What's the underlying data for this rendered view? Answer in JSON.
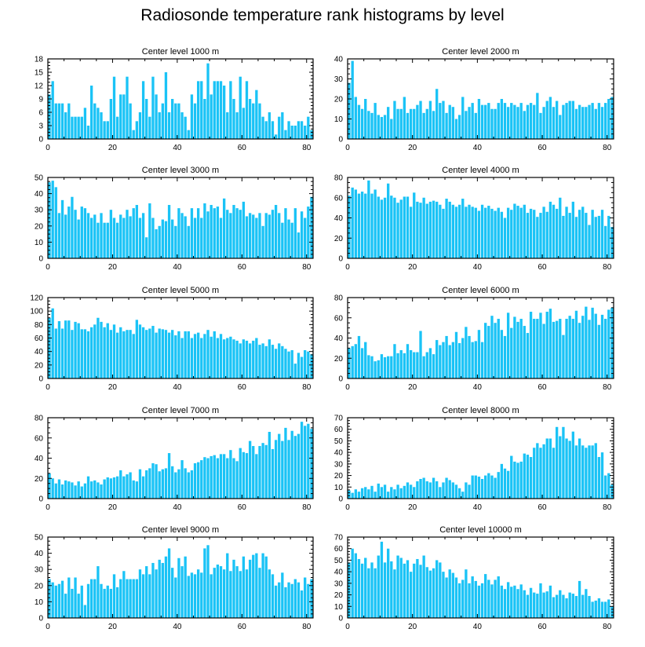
{
  "title": "Radiosonde temperature rank histograms by level",
  "bar_color": "#1ac3f6",
  "chart_data": [
    {
      "type": "bar",
      "title": "Center level 1000 m",
      "xlim": [
        0,
        82
      ],
      "ylim": [
        0,
        18
      ],
      "x_ticks": [
        0,
        20,
        40,
        60,
        80
      ],
      "y_ticks": [
        0,
        3,
        6,
        9,
        12,
        15,
        18
      ],
      "values": [
        10,
        13,
        8,
        8,
        8,
        6,
        8,
        5,
        5,
        5,
        5,
        7,
        3,
        12,
        8,
        7,
        6,
        4,
        4,
        9,
        14,
        5,
        10,
        10,
        14,
        8,
        2,
        4,
        6,
        13,
        9,
        5,
        14,
        10,
        6,
        8,
        15,
        6,
        9,
        8,
        8,
        6,
        5,
        2,
        10,
        8,
        13,
        13,
        9,
        17,
        10,
        13,
        13,
        13,
        12,
        6,
        13,
        9,
        6,
        14,
        7,
        13,
        9,
        8,
        11,
        8,
        5,
        4,
        6,
        4,
        1,
        5,
        6,
        2,
        4,
        3,
        3,
        4,
        4,
        3,
        5,
        2
      ]
    },
    {
      "type": "bar",
      "title": "Center level 2000 m",
      "xlim": [
        0,
        82
      ],
      "ylim": [
        0,
        40
      ],
      "x_ticks": [
        0,
        20,
        40,
        60,
        80
      ],
      "y_ticks": [
        0,
        10,
        20,
        30,
        40
      ],
      "values": [
        28,
        39,
        21,
        17,
        15,
        20,
        14,
        13,
        18,
        12,
        11,
        12,
        16,
        10,
        19,
        15,
        15,
        21,
        13,
        15,
        15,
        17,
        19,
        13,
        15,
        19,
        14,
        25,
        18,
        19,
        13,
        17,
        16,
        10,
        12,
        21,
        14,
        16,
        18,
        13,
        20,
        17,
        17,
        18,
        15,
        15,
        18,
        20,
        18,
        16,
        18,
        17,
        16,
        18,
        14,
        17,
        18,
        17,
        23,
        13,
        16,
        19,
        21,
        16,
        19,
        12,
        17,
        18,
        19,
        19,
        15,
        17,
        16,
        16,
        17,
        18,
        15,
        18,
        16,
        18,
        20,
        21
      ]
    },
    {
      "type": "bar",
      "title": "Center level 3000 m",
      "xlim": [
        0,
        82
      ],
      "ylim": [
        0,
        50
      ],
      "x_ticks": [
        0,
        20,
        40,
        60,
        80
      ],
      "y_ticks": [
        0,
        10,
        20,
        30,
        40,
        50
      ],
      "values": [
        47,
        48,
        44,
        28,
        36,
        27,
        32,
        38,
        30,
        24,
        32,
        31,
        28,
        25,
        27,
        22,
        28,
        22,
        22,
        30,
        25,
        22,
        27,
        25,
        30,
        26,
        31,
        33,
        25,
        28,
        13,
        34,
        25,
        18,
        20,
        24,
        23,
        33,
        24,
        20,
        31,
        28,
        26,
        20,
        31,
        25,
        31,
        25,
        34,
        29,
        33,
        31,
        32,
        25,
        37,
        30,
        28,
        33,
        31,
        30,
        35,
        26,
        28,
        27,
        25,
        28,
        20,
        28,
        27,
        30,
        33,
        28,
        22,
        31,
        24,
        22,
        31,
        16,
        29,
        25,
        32,
        38
      ]
    },
    {
      "type": "bar",
      "title": "Center level 4000 m",
      "xlim": [
        0,
        82
      ],
      "ylim": [
        0,
        80
      ],
      "x_ticks": [
        0,
        20,
        40,
        60,
        80
      ],
      "y_ticks": [
        0,
        20,
        40,
        60,
        80
      ],
      "values": [
        62,
        70,
        68,
        64,
        66,
        64,
        77,
        64,
        68,
        61,
        58,
        60,
        74,
        62,
        60,
        55,
        58,
        61,
        61,
        51,
        65,
        56,
        55,
        60,
        54,
        56,
        57,
        56,
        53,
        49,
        59,
        56,
        53,
        51,
        53,
        59,
        51,
        53,
        51,
        50,
        47,
        53,
        50,
        52,
        49,
        47,
        50,
        46,
        40,
        50,
        48,
        54,
        52,
        50,
        53,
        45,
        49,
        48,
        41,
        45,
        51,
        46,
        56,
        53,
        49,
        60,
        42,
        51,
        45,
        56,
        41,
        48,
        51,
        45,
        33,
        48,
        41,
        42,
        48,
        32,
        42,
        31
      ]
    },
    {
      "type": "bar",
      "title": "Center level 5000 m",
      "xlim": [
        0,
        82
      ],
      "ylim": [
        0,
        120
      ],
      "x_ticks": [
        0,
        20,
        40,
        60,
        80
      ],
      "y_ticks": [
        0,
        20,
        40,
        60,
        80,
        100,
        120
      ],
      "values": [
        90,
        104,
        74,
        85,
        74,
        86,
        86,
        72,
        84,
        82,
        73,
        73,
        70,
        76,
        80,
        90,
        84,
        76,
        82,
        72,
        80,
        68,
        76,
        70,
        72,
        72,
        66,
        87,
        80,
        76,
        72,
        74,
        78,
        68,
        74,
        73,
        72,
        68,
        72,
        64,
        70,
        60,
        70,
        70,
        60,
        66,
        68,
        60,
        66,
        72,
        62,
        70,
        60,
        66,
        58,
        60,
        62,
        58,
        56,
        52,
        58,
        56,
        52,
        56,
        60,
        50,
        52,
        48,
        58,
        50,
        44,
        52,
        48,
        44,
        40,
        42,
        22,
        38,
        32,
        42,
        40,
        36
      ]
    },
    {
      "type": "bar",
      "title": "Center level 6000 m",
      "xlim": [
        0,
        82
      ],
      "ylim": [
        0,
        80
      ],
      "x_ticks": [
        0,
        20,
        40,
        60,
        80
      ],
      "y_ticks": [
        0,
        20,
        40,
        60,
        80
      ],
      "values": [
        30,
        32,
        34,
        42,
        30,
        36,
        23,
        22,
        17,
        18,
        24,
        21,
        22,
        22,
        34,
        25,
        28,
        25,
        34,
        28,
        26,
        26,
        47,
        22,
        26,
        30,
        24,
        38,
        33,
        36,
        42,
        33,
        36,
        46,
        35,
        40,
        51,
        42,
        36,
        37,
        48,
        36,
        55,
        52,
        62,
        55,
        59,
        48,
        42,
        65,
        50,
        61,
        56,
        59,
        52,
        45,
        66,
        59,
        59,
        65,
        54,
        66,
        69,
        56,
        57,
        59,
        43,
        59,
        62,
        59,
        67,
        55,
        62,
        71,
        58,
        70,
        64,
        53,
        63,
        59,
        68,
        70
      ]
    },
    {
      "type": "bar",
      "title": "Center level 7000 m",
      "xlim": [
        0,
        82
      ],
      "ylim": [
        0,
        80
      ],
      "x_ticks": [
        0,
        20,
        40,
        60,
        80
      ],
      "y_ticks": [
        0,
        20,
        40,
        60,
        80
      ],
      "values": [
        25,
        20,
        15,
        19,
        14,
        18,
        17,
        16,
        13,
        17,
        12,
        15,
        22,
        17,
        18,
        16,
        14,
        19,
        21,
        20,
        21,
        22,
        28,
        22,
        24,
        26,
        18,
        17,
        29,
        22,
        28,
        30,
        35,
        34,
        27,
        29,
        30,
        45,
        32,
        26,
        29,
        38,
        30,
        26,
        28,
        35,
        36,
        38,
        41,
        40,
        42,
        43,
        40,
        44,
        44,
        40,
        48,
        40,
        37,
        50,
        46,
        45,
        57,
        52,
        44,
        52,
        55,
        53,
        66,
        49,
        58,
        64,
        57,
        70,
        58,
        67,
        62,
        64,
        76,
        72,
        74,
        69
      ]
    },
    {
      "type": "bar",
      "title": "Center level 8000 m",
      "xlim": [
        0,
        82
      ],
      "ylim": [
        0,
        70
      ],
      "x_ticks": [
        0,
        20,
        40,
        60,
        80
      ],
      "y_ticks": [
        0,
        10,
        20,
        30,
        40,
        50,
        60,
        70
      ],
      "values": [
        7,
        5,
        8,
        6,
        9,
        10,
        8,
        11,
        6,
        13,
        10,
        12,
        6,
        10,
        8,
        12,
        9,
        11,
        14,
        12,
        10,
        15,
        17,
        18,
        15,
        14,
        18,
        15,
        10,
        14,
        18,
        16,
        14,
        12,
        9,
        6,
        14,
        12,
        20,
        20,
        19,
        17,
        20,
        22,
        20,
        18,
        23,
        30,
        26,
        24,
        37,
        32,
        31,
        32,
        39,
        38,
        36,
        44,
        48,
        44,
        47,
        52,
        52,
        44,
        62,
        54,
        62,
        52,
        50,
        58,
        46,
        52,
        46,
        44,
        46,
        46,
        48,
        36,
        40,
        20,
        22,
        12
      ]
    },
    {
      "type": "bar",
      "title": "Center level 9000 m",
      "xlim": [
        0,
        82
      ],
      "ylim": [
        0,
        50
      ],
      "x_ticks": [
        0,
        20,
        40,
        60,
        80
      ],
      "y_ticks": [
        0,
        10,
        20,
        30,
        40,
        50
      ],
      "values": [
        24,
        22,
        20,
        21,
        23,
        15,
        25,
        18,
        25,
        15,
        20,
        8,
        21,
        24,
        24,
        32,
        21,
        18,
        20,
        18,
        27,
        19,
        24,
        29,
        24,
        24,
        24,
        24,
        30,
        27,
        32,
        27,
        34,
        30,
        36,
        34,
        38,
        43,
        31,
        25,
        37,
        32,
        38,
        26,
        28,
        27,
        30,
        28,
        43,
        45,
        27,
        31,
        33,
        32,
        30,
        40,
        29,
        36,
        32,
        29,
        38,
        30,
        36,
        39,
        40,
        31,
        40,
        38,
        30,
        27,
        20,
        22,
        28,
        19,
        22,
        21,
        24,
        22,
        17,
        25,
        21,
        24
      ]
    },
    {
      "type": "bar",
      "title": "Center level 10000 m",
      "xlim": [
        0,
        82
      ],
      "ylim": [
        0,
        70
      ],
      "x_ticks": [
        0,
        20,
        40,
        60,
        80
      ],
      "y_ticks": [
        0,
        10,
        20,
        30,
        40,
        50,
        60,
        70
      ],
      "values": [
        48,
        60,
        56,
        51,
        47,
        52,
        43,
        48,
        43,
        54,
        66,
        48,
        60,
        49,
        42,
        54,
        52,
        47,
        50,
        40,
        47,
        51,
        46,
        54,
        44,
        41,
        43,
        50,
        48,
        40,
        35,
        42,
        39,
        35,
        30,
        33,
        42,
        30,
        36,
        32,
        28,
        30,
        38,
        33,
        29,
        33,
        36,
        28,
        25,
        31,
        27,
        28,
        25,
        29,
        24,
        20,
        26,
        22,
        21,
        30,
        22,
        23,
        28,
        18,
        20,
        24,
        20,
        17,
        22,
        21,
        19,
        32,
        20,
        25,
        19,
        14,
        15,
        17,
        14,
        14,
        16,
        10
      ]
    }
  ]
}
